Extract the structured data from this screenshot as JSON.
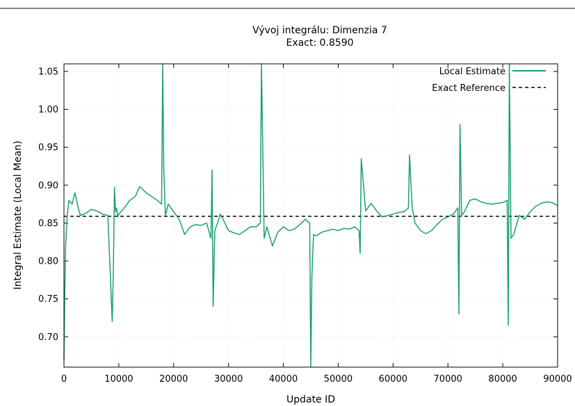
{
  "chart_data": {
    "type": "line",
    "title": "Vývoj integrálu: Dimenzia 7",
    "subtitle": "Exact: 0.8590",
    "xlabel": "Update ID",
    "ylabel": "Integral Estimate (Local Mean)",
    "xlim": [
      0,
      90000
    ],
    "ylim": [
      0.66,
      1.06
    ],
    "x_ticks": [
      "0",
      "10000",
      "20000",
      "30000",
      "40000",
      "50000",
      "60000",
      "70000",
      "80000",
      "90000"
    ],
    "y_ticks": [
      "0.70",
      "0.75",
      "0.80",
      "0.85",
      "0.90",
      "0.95",
      "1.00",
      "1.05"
    ],
    "grid": true,
    "legend_position": "top-right",
    "series": [
      {
        "name": "Local Estimate",
        "color": "#1a9e77",
        "style": "solid",
        "x": [
          0,
          150,
          300,
          600,
          900,
          1500,
          2000,
          2600,
          3000,
          4000,
          5000,
          6000,
          7000,
          8000,
          8800,
          9000,
          9200,
          9400,
          9600,
          9800,
          10000,
          11000,
          12000,
          13000,
          13800,
          15000,
          16000,
          17000,
          17800,
          18000,
          18200,
          18500,
          19000,
          20000,
          21000,
          22000,
          23000,
          24000,
          25000,
          26000,
          26800,
          27000,
          27200,
          27500,
          28000,
          28500,
          29000,
          30000,
          31000,
          32000,
          33000,
          34000,
          35000,
          35800,
          36000,
          36200,
          36500,
          37000,
          38000,
          39000,
          40000,
          41000,
          42000,
          43000,
          44000,
          44800,
          45000,
          45200,
          45500,
          46000,
          47000,
          48000,
          49000,
          50000,
          51000,
          52000,
          53000,
          53800,
          54000,
          54200,
          55000,
          56000,
          57000,
          58000,
          59000,
          60000,
          61000,
          62000,
          62800,
          63000,
          63200,
          63500,
          64000,
          65000,
          66000,
          67000,
          68000,
          69000,
          70000,
          71000,
          71800,
          72000,
          72200,
          72500,
          73000,
          74000,
          75000,
          76000,
          77000,
          78000,
          79000,
          80000,
          80800,
          81000,
          81200,
          81500,
          82000,
          83000,
          84000,
          85000,
          86000,
          87000,
          88000,
          89000,
          90000
        ],
        "y": [
          0.67,
          0.76,
          0.82,
          0.86,
          0.88,
          0.875,
          0.89,
          0.87,
          0.86,
          0.863,
          0.868,
          0.866,
          0.862,
          0.86,
          0.72,
          0.785,
          0.897,
          0.865,
          0.87,
          0.858,
          0.862,
          0.87,
          0.88,
          0.885,
          0.898,
          0.89,
          0.885,
          0.88,
          0.875,
          1.06,
          0.92,
          0.86,
          0.875,
          0.865,
          0.855,
          0.835,
          0.845,
          0.848,
          0.847,
          0.85,
          0.83,
          0.92,
          0.74,
          0.84,
          0.85,
          0.862,
          0.855,
          0.84,
          0.837,
          0.835,
          0.84,
          0.845,
          0.845,
          0.85,
          1.06,
          0.97,
          0.83,
          0.845,
          0.82,
          0.838,
          0.845,
          0.84,
          0.842,
          0.848,
          0.855,
          0.85,
          0.66,
          0.78,
          0.835,
          0.833,
          0.838,
          0.84,
          0.842,
          0.84,
          0.843,
          0.842,
          0.845,
          0.84,
          0.81,
          0.935,
          0.866,
          0.876,
          0.866,
          0.858,
          0.86,
          0.862,
          0.864,
          0.865,
          0.87,
          0.94,
          0.91,
          0.87,
          0.85,
          0.84,
          0.836,
          0.84,
          0.848,
          0.855,
          0.858,
          0.862,
          0.87,
          0.73,
          0.98,
          0.86,
          0.865,
          0.88,
          0.882,
          0.878,
          0.876,
          0.875,
          0.876,
          0.877,
          0.88,
          0.715,
          1.06,
          0.83,
          0.835,
          0.86,
          0.855,
          0.865,
          0.872,
          0.876,
          0.878,
          0.877,
          0.873
        ]
      },
      {
        "name": "Exact Reference",
        "color": "#000000",
        "style": "dashed",
        "value": 0.859
      }
    ]
  }
}
